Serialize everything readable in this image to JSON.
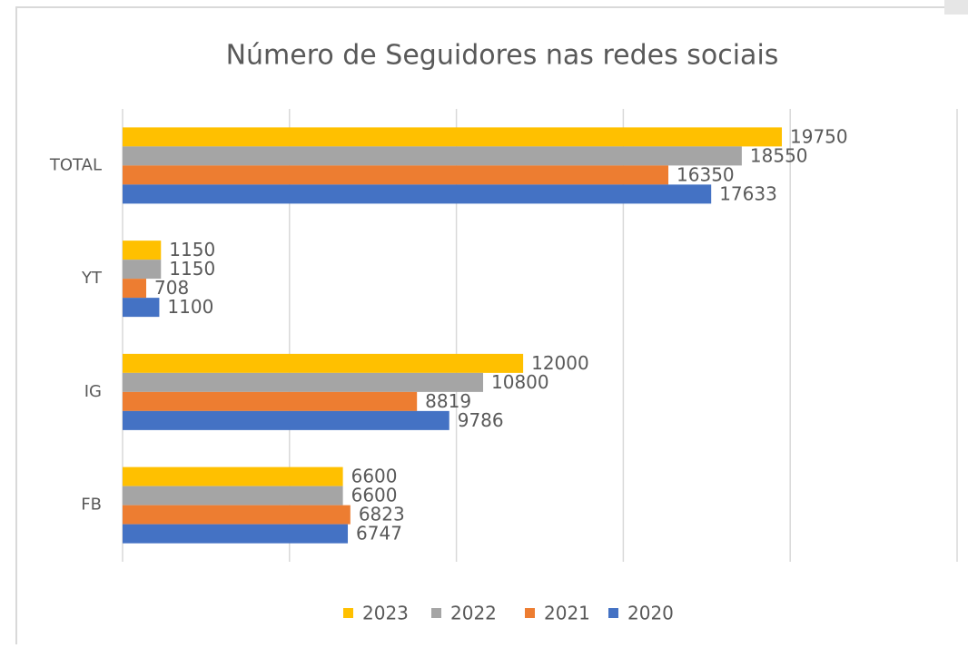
{
  "chart_data": {
    "type": "bar",
    "orientation": "horizontal",
    "title": "Número de Seguidores nas redes sociais",
    "categories": [
      "FB",
      "IG",
      "YT",
      "TOTAL"
    ],
    "series": [
      {
        "name": "2023",
        "color": "#ffc000",
        "values": [
          6600,
          12000,
          1150,
          19750
        ]
      },
      {
        "name": "2022",
        "color": "#a5a5a5",
        "values": [
          6600,
          10800,
          1150,
          18550
        ]
      },
      {
        "name": "2021",
        "color": "#ed7d31",
        "values": [
          6823,
          8819,
          708,
          16350
        ]
      },
      {
        "name": "2020",
        "color": "#4472c4",
        "values": [
          6747,
          9786,
          1100,
          17633
        ]
      }
    ],
    "xlim": [
      0,
      25000
    ],
    "xticks": [
      0,
      5000,
      10000,
      15000,
      20000,
      25000
    ],
    "grid": true,
    "legend": "bottom"
  }
}
